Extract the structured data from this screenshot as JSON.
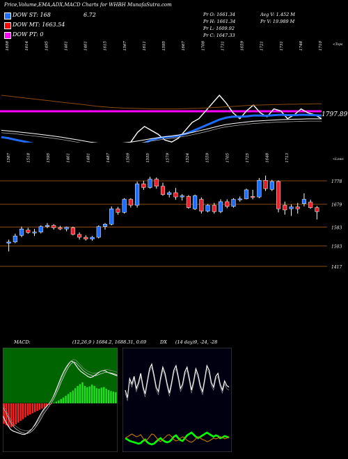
{
  "header": {
    "title": "Price,Volume,EMA,ADX,MACD Charts for WHBH",
    "site": "MunafaSutra.com"
  },
  "legend": {
    "dow_st": "DOW ST: 168",
    "dow_st_value": "6.72",
    "dow_mt": "DOW MT: 1663.54",
    "dow_pt": "DOW PT: 0",
    "colors": {
      "st": "#1e6dff",
      "mt": "#ff0000",
      "pt": "#ff00ff"
    }
  },
  "info": {
    "pr_o": "Pr   O: 1661.34",
    "pr_h": "Pr   H: 1661.34",
    "pr_l": "Pr   L: 1609.92",
    "pr_c": "Pr   C: 1647.33",
    "avg_v": "Avg V: 1.452  M",
    "pr_v": "Pr   V: 19.989  M"
  },
  "chart_data": [
    {
      "type": "line",
      "name": "ema_panel",
      "top_labels": [
        "1658",
        "1614",
        "1495",
        "1461",
        "1461",
        "1615",
        "1567",
        "1611",
        "1595",
        "1667",
        "1708",
        "1731",
        "1659",
        "1721",
        "1731",
        "1748",
        "1710"
      ],
      "corner_label": "<Tops",
      "level_label": "1797.89",
      "series": [
        {
          "name": "price",
          "color": "#ffffff",
          "values": [
            1600,
            1590,
            1570,
            1560,
            1555,
            1570,
            1580,
            1575,
            1560,
            1540,
            1520,
            1500,
            1470,
            1440,
            1450,
            1470,
            1500,
            1530,
            1590,
            1640,
            1690,
            1720,
            1700,
            1680,
            1650,
            1640,
            1660,
            1700,
            1740,
            1760,
            1800,
            1840,
            1880,
            1840,
            1790,
            1760,
            1800,
            1830,
            1790,
            1770,
            1810,
            1800,
            1760,
            1780,
            1810,
            1790,
            1780,
            1760
          ]
        },
        {
          "name": "ema_fast",
          "color": "#1e6dff",
          "values": [
            1665,
            1660,
            1652,
            1645,
            1638,
            1630,
            1622,
            1612,
            1602,
            1590,
            1578,
            1565,
            1552,
            1545,
            1542,
            1545,
            1550,
            1560,
            1575,
            1595,
            1615,
            1635,
            1650,
            1660,
            1665,
            1668,
            1672,
            1682,
            1695,
            1710,
            1725,
            1740,
            1755,
            1765,
            1770,
            1770,
            1772,
            1776,
            1776,
            1775,
            1778,
            1780,
            1778,
            1778,
            1780,
            1779,
            1778,
            1776
          ]
        },
        {
          "name": "ema_slow",
          "color": "#ffffff",
          "values": [
            1700,
            1697,
            1694,
            1690,
            1686,
            1682,
            1678,
            1674,
            1669,
            1664,
            1658,
            1652,
            1646,
            1640,
            1636,
            1634,
            1633,
            1634,
            1636,
            1640,
            1645,
            1651,
            1657,
            1662,
            1667,
            1671,
            1676,
            1682,
            1689,
            1697,
            1705,
            1714,
            1723,
            1730,
            1735,
            1739,
            1743,
            1747,
            1749,
            1751,
            1753,
            1755,
            1756,
            1757,
            1758,
            1759,
            1759,
            1759
          ]
        },
        {
          "name": "ema_long",
          "color": "#8a4a10",
          "values": [
            1880,
            1876,
            1872,
            1868,
            1864,
            1860,
            1856,
            1852,
            1848,
            1844,
            1840,
            1836,
            1832,
            1828,
            1824,
            1821,
            1818,
            1816,
            1814,
            1813,
            1812,
            1811,
            1810,
            1810,
            1810,
            1810,
            1810,
            1811,
            1812,
            1813,
            1815,
            1817,
            1819,
            1821,
            1823,
            1825,
            1827,
            1829,
            1830,
            1831,
            1832,
            1833,
            1834,
            1834,
            1835,
            1835,
            1836,
            1836
          ]
        }
      ]
    },
    {
      "type": "candlestick",
      "name": "price_panel",
      "top_labels": [
        "1587",
        "1518",
        "1595",
        "1461",
        "1481",
        "1487",
        "1509",
        "1555",
        "1579",
        "1524",
        "1559",
        "1705",
        "1725",
        "1648",
        "1713"
      ],
      "corner_label": "<Lows",
      "levels": [
        1778,
        1679,
        1583,
        1503,
        1417
      ],
      "level_labels": [
        "1778",
        "1679",
        "1583",
        "1503",
        "1417"
      ],
      "candles": [
        {
          "o": 1515,
          "h": 1530,
          "l": 1480,
          "c": 1520,
          "up": true
        },
        {
          "o": 1520,
          "h": 1555,
          "l": 1515,
          "c": 1545,
          "up": true
        },
        {
          "o": 1548,
          "h": 1585,
          "l": 1540,
          "c": 1575,
          "up": true
        },
        {
          "o": 1570,
          "h": 1580,
          "l": 1555,
          "c": 1560,
          "up": false
        },
        {
          "o": 1560,
          "h": 1575,
          "l": 1545,
          "c": 1562,
          "up": true
        },
        {
          "o": 1562,
          "h": 1590,
          "l": 1556,
          "c": 1585,
          "up": true
        },
        {
          "o": 1585,
          "h": 1600,
          "l": 1578,
          "c": 1590,
          "up": true
        },
        {
          "o": 1590,
          "h": 1595,
          "l": 1572,
          "c": 1580,
          "up": false
        },
        {
          "o": 1580,
          "h": 1588,
          "l": 1570,
          "c": 1575,
          "up": false
        },
        {
          "o": 1575,
          "h": 1585,
          "l": 1565,
          "c": 1582,
          "up": true
        },
        {
          "o": 1580,
          "h": 1585,
          "l": 1548,
          "c": 1552,
          "up": false
        },
        {
          "o": 1552,
          "h": 1560,
          "l": 1530,
          "c": 1540,
          "up": false
        },
        {
          "o": 1540,
          "h": 1548,
          "l": 1526,
          "c": 1532,
          "up": false
        },
        {
          "o": 1532,
          "h": 1545,
          "l": 1525,
          "c": 1540,
          "up": true
        },
        {
          "o": 1540,
          "h": 1590,
          "l": 1535,
          "c": 1585,
          "up": true
        },
        {
          "o": 1585,
          "h": 1600,
          "l": 1572,
          "c": 1595,
          "up": true
        },
        {
          "o": 1595,
          "h": 1670,
          "l": 1590,
          "c": 1660,
          "up": true
        },
        {
          "o": 1660,
          "h": 1668,
          "l": 1635,
          "c": 1645,
          "up": false
        },
        {
          "o": 1645,
          "h": 1705,
          "l": 1640,
          "c": 1700,
          "up": true
        },
        {
          "o": 1700,
          "h": 1705,
          "l": 1665,
          "c": 1675,
          "up": false
        },
        {
          "o": 1675,
          "h": 1775,
          "l": 1665,
          "c": 1765,
          "up": true
        },
        {
          "o": 1765,
          "h": 1778,
          "l": 1740,
          "c": 1750,
          "up": false
        },
        {
          "o": 1750,
          "h": 1795,
          "l": 1745,
          "c": 1785,
          "up": true
        },
        {
          "o": 1785,
          "h": 1792,
          "l": 1745,
          "c": 1755,
          "up": false
        },
        {
          "o": 1755,
          "h": 1770,
          "l": 1715,
          "c": 1720,
          "up": false
        },
        {
          "o": 1720,
          "h": 1735,
          "l": 1708,
          "c": 1728,
          "up": true
        },
        {
          "o": 1728,
          "h": 1748,
          "l": 1698,
          "c": 1710,
          "up": false
        },
        {
          "o": 1710,
          "h": 1722,
          "l": 1695,
          "c": 1715,
          "up": true
        },
        {
          "o": 1712,
          "h": 1718,
          "l": 1660,
          "c": 1665,
          "up": false
        },
        {
          "o": 1660,
          "h": 1720,
          "l": 1655,
          "c": 1715,
          "up": true
        },
        {
          "o": 1700,
          "h": 1708,
          "l": 1640,
          "c": 1650,
          "up": false
        },
        {
          "o": 1650,
          "h": 1680,
          "l": 1645,
          "c": 1675,
          "up": true
        },
        {
          "o": 1675,
          "h": 1685,
          "l": 1640,
          "c": 1648,
          "up": false
        },
        {
          "o": 1648,
          "h": 1700,
          "l": 1642,
          "c": 1690,
          "up": true
        },
        {
          "o": 1690,
          "h": 1700,
          "l": 1662,
          "c": 1670,
          "up": false
        },
        {
          "o": 1670,
          "h": 1705,
          "l": 1665,
          "c": 1700,
          "up": true
        },
        {
          "o": 1700,
          "h": 1712,
          "l": 1690,
          "c": 1702,
          "up": true
        },
        {
          "o": 1702,
          "h": 1745,
          "l": 1700,
          "c": 1740,
          "up": true
        },
        {
          "o": 1712,
          "h": 1740,
          "l": 1700,
          "c": 1710,
          "up": false
        },
        {
          "o": 1710,
          "h": 1790,
          "l": 1705,
          "c": 1780,
          "up": true
        },
        {
          "o": 1780,
          "h": 1800,
          "l": 1735,
          "c": 1745,
          "up": false
        },
        {
          "o": 1742,
          "h": 1782,
          "l": 1735,
          "c": 1775,
          "up": true
        },
        {
          "o": 1775,
          "h": 1780,
          "l": 1645,
          "c": 1660,
          "up": false
        },
        {
          "o": 1675,
          "h": 1690,
          "l": 1635,
          "c": 1655,
          "up": false
        },
        {
          "o": 1660,
          "h": 1678,
          "l": 1630,
          "c": 1668,
          "up": true
        },
        {
          "o": 1668,
          "h": 1685,
          "l": 1640,
          "c": 1660,
          "up": false
        },
        {
          "o": 1682,
          "h": 1725,
          "l": 1670,
          "c": 1700,
          "up": true
        },
        {
          "o": 1688,
          "h": 1698,
          "l": 1660,
          "c": 1665,
          "up": false
        },
        {
          "o": 1665,
          "h": 1672,
          "l": 1615,
          "c": 1648,
          "up": false
        }
      ]
    },
    {
      "type": "bar",
      "name": "macd_panel",
      "label": "MACD:",
      "params": "(12,26,9 ) 1684.2,  1688.31, 0.69",
      "histogram": [
        -70,
        -75,
        -80,
        -82,
        -78,
        -72,
        -66,
        -60,
        -54,
        -48,
        -42,
        -38,
        -34,
        -30,
        -26,
        -22,
        -18,
        -14,
        -10,
        -5,
        -2,
        2,
        6,
        10,
        15,
        20,
        26,
        32,
        38,
        44,
        52,
        60,
        66,
        72,
        60,
        55,
        58,
        64,
        60,
        52,
        50,
        54,
        56,
        50,
        46,
        42,
        40,
        38
      ],
      "macd_line": [
        -30,
        -42,
        -52,
        -60,
        -64,
        -66,
        -68,
        -70,
        -72,
        -72,
        -68,
        -64,
        -58,
        -50,
        -40,
        -30,
        -20,
        -12,
        -6,
        0,
        8,
        20,
        34,
        48,
        62,
        74,
        84,
        92,
        98,
        96,
        88,
        80,
        74,
        70,
        66,
        62,
        60,
        62,
        66,
        70,
        74,
        76,
        76,
        72,
        70,
        68,
        66,
        64
      ],
      "signal_line": [
        -10,
        -20,
        -32,
        -44,
        -52,
        -58,
        -62,
        -66,
        -68,
        -70,
        -70,
        -68,
        -64,
        -58,
        -50,
        -42,
        -32,
        -22,
        -14,
        -6,
        2,
        12,
        24,
        36,
        50,
        62,
        74,
        84,
        92,
        96,
        94,
        88,
        82,
        76,
        72,
        68,
        66,
        64,
        64,
        66,
        68,
        70,
        72,
        72,
        71,
        70,
        68,
        66
      ]
    },
    {
      "type": "line",
      "name": "adx_panel",
      "label": "DX",
      "params": "(14 day)9, -24, -28",
      "series": [
        {
          "name": "adx",
          "color": "#ffffff",
          "values": [
            40,
            30,
            55,
            48,
            58,
            42,
            50,
            62,
            45,
            35,
            52,
            68,
            74,
            60,
            44,
            38,
            56,
            70,
            62,
            48,
            36,
            50,
            66,
            72,
            58,
            42,
            48,
            64,
            70,
            56,
            40,
            52,
            68,
            60,
            46,
            38,
            54,
            72,
            66,
            50,
            44,
            58,
            62,
            48,
            40,
            52,
            46,
            44
          ]
        },
        {
          "name": "plus_di",
          "color": "#00ff00",
          "values": [
            22,
            20,
            18,
            17,
            16,
            15,
            14,
            15,
            18,
            20,
            16,
            14,
            13,
            14,
            17,
            20,
            22,
            19,
            17,
            16,
            17,
            20,
            24,
            26,
            22,
            19,
            18,
            22,
            26,
            28,
            30,
            27,
            24,
            22,
            24,
            26,
            28,
            30,
            28,
            26,
            24,
            26,
            25,
            22,
            23,
            25,
            24,
            23
          ]
        },
        {
          "name": "minus_di",
          "color": "#c8780a",
          "values": [
            22,
            24,
            26,
            28,
            26,
            24,
            25,
            27,
            22,
            18,
            20,
            24,
            28,
            27,
            23,
            19,
            17,
            20,
            23,
            26,
            27,
            24,
            20,
            18,
            19,
            22,
            24,
            22,
            19,
            17,
            16,
            18,
            21,
            24,
            22,
            20,
            19,
            17,
            18,
            20,
            22,
            21,
            22,
            24,
            23,
            21,
            22,
            24
          ]
        }
      ]
    }
  ]
}
